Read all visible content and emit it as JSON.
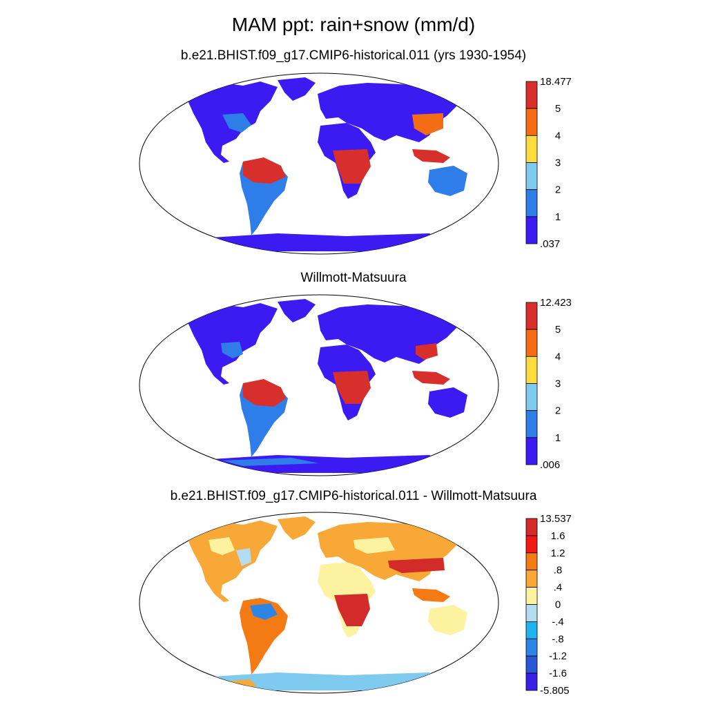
{
  "figure": {
    "title": "MAM ppt: rain+snow (mm/d)"
  },
  "panels": [
    {
      "subtitle": "b.e21.BHIST.f09_g17.CMIP6-historical.011 (yrs 1930-1954)",
      "colorbar": {
        "labels": [
          "18.477",
          "5",
          "4",
          "3",
          "2",
          "1",
          ".037"
        ],
        "colors": [
          "#d7302c",
          "#f46d14",
          "#fddc40",
          "#7fcbef",
          "#2f7de9",
          "#3b1bf2"
        ]
      }
    },
    {
      "subtitle": "Willmott-Matsuura",
      "colorbar": {
        "labels": [
          "12.423",
          "5",
          "4",
          "3",
          "2",
          "1",
          ".006"
        ],
        "colors": [
          "#d7302c",
          "#f46d14",
          "#fddc40",
          "#7fcbef",
          "#2f7de9",
          "#3b1bf2"
        ]
      }
    },
    {
      "subtitle": "b.e21.BHIST.f09_g17.CMIP6-historical.011 - Willmott-Matsuura",
      "colorbar": {
        "labels": [
          "13.537",
          "1.6",
          "1.2",
          ".8",
          ".4",
          "0",
          "-.4",
          "-.8",
          "-1.2",
          "-1.6",
          "-5.805"
        ],
        "colors": [
          "#d32a2a",
          "#f21818",
          "#f47a14",
          "#f8a836",
          "#fdf2a0",
          "#b3dcf0",
          "#1eb4f0",
          "#2d86e6",
          "#2c56d8",
          "#3a20e6"
        ]
      }
    }
  ]
}
